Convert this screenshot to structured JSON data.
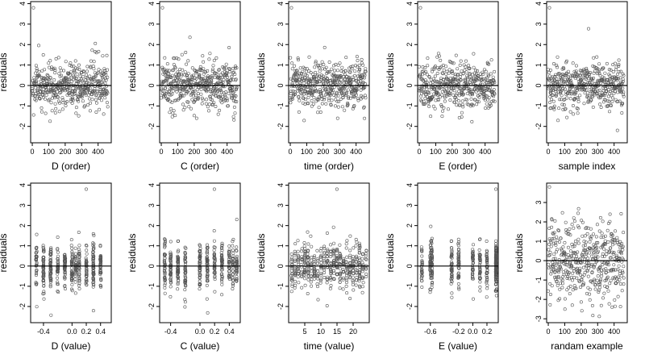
{
  "chart_data": [
    {
      "type": "scatter",
      "ylabel": "residuals",
      "xlabel": "D (order)",
      "xlim": [
        -10,
        480
      ],
      "ylim": [
        -2.8,
        4.1
      ],
      "xticks": [
        0,
        100,
        200,
        300,
        400
      ],
      "xtick_labels": [
        "0",
        "100",
        "200",
        "300",
        "400"
      ],
      "yticks": [
        -2,
        -1,
        0,
        1,
        2,
        3,
        4
      ],
      "ytick_labels": [
        "-2",
        "-1",
        "0",
        "1",
        "2",
        "3",
        "4"
      ],
      "hline": 0,
      "points": {
        "mode": "order",
        "n": 460,
        "seed": 11
      }
    },
    {
      "type": "scatter",
      "ylabel": "residuals",
      "xlabel": "C (order)",
      "xlim": [
        -10,
        480
      ],
      "ylim": [
        -2.8,
        4.1
      ],
      "xticks": [
        0,
        100,
        200,
        300,
        400
      ],
      "xtick_labels": [
        "0",
        "100",
        "200",
        "300",
        "400"
      ],
      "yticks": [
        -2,
        -1,
        0,
        1,
        2,
        3,
        4
      ],
      "ytick_labels": [
        "-2",
        "-1",
        "0",
        "1",
        "2",
        "3",
        "4"
      ],
      "hline": 0,
      "points": {
        "mode": "order",
        "n": 460,
        "seed": 23
      }
    },
    {
      "type": "scatter",
      "ylabel": "residuals",
      "xlabel": "time (order)",
      "xlim": [
        -10,
        480
      ],
      "ylim": [
        -2.8,
        4.1
      ],
      "xticks": [
        0,
        100,
        200,
        300,
        400
      ],
      "xtick_labels": [
        "0",
        "100",
        "200",
        "300",
        "400"
      ],
      "yticks": [
        -2,
        -1,
        0,
        1,
        2,
        3,
        4
      ],
      "ytick_labels": [
        "-2",
        "-1",
        "0",
        "1",
        "2",
        "3",
        "4"
      ],
      "hline": 0,
      "points": {
        "mode": "order",
        "n": 460,
        "seed": 37
      }
    },
    {
      "type": "scatter",
      "ylabel": "residuals",
      "xlabel": "E (order)",
      "xlim": [
        -10,
        480
      ],
      "ylim": [
        -2.8,
        4.1
      ],
      "xticks": [
        0,
        100,
        200,
        300,
        400
      ],
      "xtick_labels": [
        "0",
        "100",
        "200",
        "300",
        "400"
      ],
      "yticks": [
        -2,
        -1,
        0,
        1,
        2,
        3,
        4
      ],
      "ytick_labels": [
        "-2",
        "-1",
        "0",
        "1",
        "2",
        "3",
        "4"
      ],
      "hline": 0,
      "points": {
        "mode": "order",
        "n": 460,
        "seed": 41
      }
    },
    {
      "type": "scatter",
      "ylabel": "residuals",
      "xlabel": "sample index",
      "xlim": [
        -10,
        480
      ],
      "ylim": [
        -2.8,
        4.1
      ],
      "xticks": [
        0,
        100,
        200,
        300,
        400
      ],
      "xtick_labels": [
        "0",
        "100",
        "200",
        "300",
        "400"
      ],
      "yticks": [
        -2,
        -1,
        0,
        1,
        2,
        3,
        4
      ],
      "ytick_labels": [
        "-2",
        "-1",
        "0",
        "1",
        "2",
        "3",
        "4"
      ],
      "hline": 0,
      "points": {
        "mode": "order",
        "n": 460,
        "seed": 53
      }
    },
    {
      "type": "scatter",
      "ylabel": "residuals",
      "xlabel": "D (value)",
      "xlim": [
        -0.58,
        0.55
      ],
      "ylim": [
        -2.8,
        4.1
      ],
      "xticks": [
        -0.4,
        0,
        0.2,
        0.4
      ],
      "xtick_labels": [
        "-0.4",
        "0.0",
        "0.2",
        "0.4"
      ],
      "yticks": [
        -2,
        -1,
        0,
        1,
        2,
        3,
        4
      ],
      "ytick_labels": [
        "-2",
        "-1",
        "0",
        "1",
        "2",
        "3",
        "4"
      ],
      "hline": 0,
      "points": {
        "mode": "value",
        "n": 460,
        "seed": 61,
        "levels": [
          -0.5,
          -0.4,
          -0.3,
          -0.2,
          -0.1,
          0.0,
          0.05,
          0.1,
          0.2,
          0.3,
          0.4
        ]
      }
    },
    {
      "type": "scatter",
      "ylabel": "residuals",
      "xlabel": "C (value)",
      "xlim": [
        -0.55,
        0.55
      ],
      "ylim": [
        -2.8,
        4.1
      ],
      "xticks": [
        -0.4,
        0,
        0.2,
        0.4
      ],
      "xtick_labels": [
        "-0.4",
        "0.0",
        "0.2",
        "0.4"
      ],
      "yticks": [
        -2,
        -1,
        0,
        1,
        2,
        3,
        4
      ],
      "ytick_labels": [
        "-2",
        "-1",
        "0",
        "1",
        "2",
        "3",
        "4"
      ],
      "hline": 0,
      "points": {
        "mode": "value",
        "n": 460,
        "seed": 73,
        "levels": [
          -0.48,
          -0.4,
          -0.3,
          -0.2,
          0.0,
          0.1,
          0.2,
          0.3,
          0.4,
          0.45,
          0.5
        ]
      }
    },
    {
      "type": "scatter",
      "ylabel": "residuals",
      "xlabel": "time (value)",
      "xlim": [
        0,
        25
      ],
      "ylim": [
        -2.8,
        4.1
      ],
      "xticks": [
        5,
        10,
        15,
        20
      ],
      "xtick_labels": [
        "5",
        "10",
        "15",
        "20"
      ],
      "yticks": [
        -2,
        -1,
        0,
        1,
        2,
        3,
        4
      ],
      "ytick_labels": [
        "-2",
        "-1",
        "0",
        "1",
        "2",
        "3",
        "4"
      ],
      "hline": 0,
      "points": {
        "mode": "value",
        "n": 460,
        "seed": 89,
        "levels": [
          1,
          2,
          3,
          4,
          5,
          6,
          7,
          8,
          9,
          10,
          11,
          12,
          13,
          14,
          15,
          16,
          17,
          18,
          19,
          20,
          21,
          22,
          23,
          24
        ]
      }
    },
    {
      "type": "scatter",
      "ylabel": "residuals",
      "xlabel": "E (value)",
      "xlim": [
        -0.78,
        0.36
      ],
      "ylim": [
        -2.8,
        4.1
      ],
      "xticks": [
        -0.6,
        -0.2,
        0,
        0.2
      ],
      "xtick_labels": [
        "-0.6",
        "-0.2",
        "0.0",
        "0.2"
      ],
      "yticks": [
        -2,
        -1,
        0,
        1,
        2,
        3,
        4
      ],
      "ytick_labels": [
        "-2",
        "-1",
        "0",
        "1",
        "2",
        "3",
        "4"
      ],
      "hline": 0,
      "points": {
        "mode": "value",
        "n": 460,
        "seed": 97,
        "levels": [
          -0.72,
          -0.6,
          -0.58,
          -0.3,
          -0.2,
          0.0,
          0.1,
          0.2,
          0.33,
          0.33,
          0.33
        ]
      }
    },
    {
      "type": "scatter",
      "ylabel": "residuals",
      "xlabel": "randam example",
      "xlim": [
        -10,
        480
      ],
      "ylim": [
        -3.2,
        4.0
      ],
      "xticks": [
        0,
        100,
        200,
        300,
        400
      ],
      "xtick_labels": [
        "0",
        "100",
        "200",
        "300",
        "400"
      ],
      "yticks": [
        -3,
        -2,
        -1,
        0,
        1,
        2,
        3
      ],
      "ytick_labels": [
        "-3",
        "-2",
        "-1",
        "0",
        "1",
        "2",
        "3"
      ],
      "hline": 0,
      "points": {
        "mode": "random",
        "n": 460,
        "seed": 101
      }
    }
  ]
}
